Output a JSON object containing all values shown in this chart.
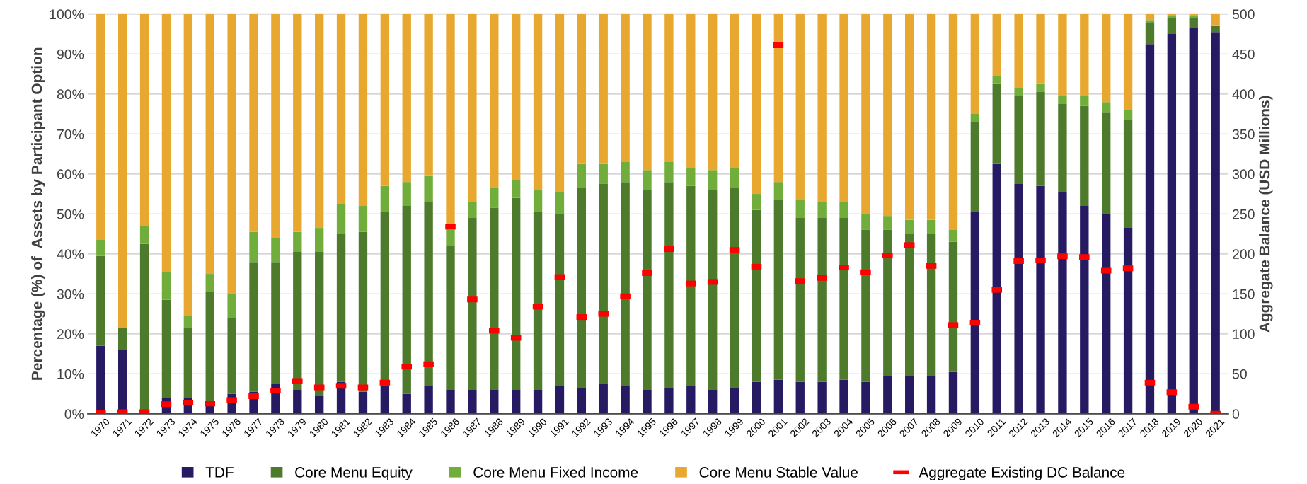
{
  "chart_data": {
    "type": "bar",
    "stacked": true,
    "categories": [
      "1970",
      "1971",
      "1972",
      "1973",
      "1974",
      "1975",
      "1976",
      "1977",
      "1978",
      "1979",
      "1980",
      "1981",
      "1982",
      "1983",
      "1984",
      "1985",
      "1986",
      "1987",
      "1988",
      "1989",
      "1990",
      "1991",
      "1992",
      "1993",
      "1994",
      "1995",
      "1996",
      "1997",
      "1998",
      "1999",
      "2000",
      "2001",
      "2002",
      "2003",
      "2004",
      "2005",
      "2006",
      "2007",
      "2008",
      "2009",
      "2010",
      "2011",
      "2012",
      "2013",
      "2014",
      "2015",
      "2016",
      "2017",
      "2018",
      "2019",
      "2020",
      "2021"
    ],
    "ylabel": "Percentage (%) of  Assets by Participant Option",
    "y2label": "Aggregate Balance (USD Millions)",
    "series": [
      {
        "name": "TDF",
        "color": "#261a63",
        "values": [
          17,
          16,
          0,
          4,
          4,
          2,
          5,
          5.5,
          7.5,
          6,
          4.5,
          8,
          5.5,
          7,
          5,
          7,
          6,
          6,
          6,
          6,
          6,
          7,
          6.5,
          7.5,
          7,
          6,
          6.5,
          7,
          6,
          6.5,
          8,
          8.5,
          8,
          8,
          8.5,
          8,
          9.5,
          9.5,
          9.5,
          10.5,
          50.5,
          62.5,
          57.5,
          57,
          55.5,
          52,
          50,
          46.5,
          92.5,
          95,
          96.5,
          95.5
        ]
      },
      {
        "name": "Core Menu Equity",
        "color": "#4e7a2c",
        "values": [
          22.5,
          5.5,
          42.5,
          24.5,
          17.5,
          28.5,
          19,
          32.5,
          30.5,
          34.5,
          36,
          37,
          40,
          43.5,
          47,
          46,
          36,
          43,
          45.5,
          48,
          44.5,
          43,
          50,
          50,
          51,
          50,
          51.5,
          50,
          50,
          50,
          43,
          45,
          41,
          41,
          40.5,
          38,
          36.5,
          35.5,
          35.5,
          32.5,
          22.5,
          20,
          22,
          23.5,
          22,
          25,
          25.5,
          27,
          5.5,
          4,
          2.5,
          1.5
        ]
      },
      {
        "name": "Core Menu Fixed Income",
        "color": "#70ad3a",
        "values": [
          4,
          0,
          4.5,
          7,
          3,
          4.5,
          6,
          7.5,
          6,
          5,
          6,
          7.5,
          6.5,
          6.5,
          6,
          6.5,
          4,
          4,
          5,
          4.5,
          5.5,
          5.5,
          6,
          5,
          5,
          5,
          5,
          4.5,
          5,
          5,
          4,
          4.5,
          4.5,
          4,
          4,
          4,
          3.5,
          3.5,
          3.5,
          3,
          2,
          2,
          2,
          2,
          2,
          2.5,
          2.5,
          2.5,
          0.5,
          0.5,
          0.5,
          0
        ]
      },
      {
        "name": "Core Menu Stable Value",
        "color": "#e8a830",
        "values": [
          56.5,
          78.5,
          53,
          64.5,
          75.5,
          65,
          70,
          54.5,
          56,
          54.5,
          53.5,
          47.5,
          48,
          43,
          42,
          40.5,
          54,
          47,
          43.5,
          41.5,
          44,
          44.5,
          37.5,
          37.5,
          37,
          39,
          37,
          38.5,
          39,
          38.5,
          45,
          42,
          46.5,
          47,
          47,
          50,
          50.5,
          51.5,
          51.5,
          54,
          25,
          15.5,
          18.5,
          17.5,
          20.5,
          20.5,
          22,
          24,
          1.5,
          0.5,
          0.5,
          3
        ]
      },
      {
        "name": "Aggregate Existing DC Balance",
        "type": "scatter",
        "axis": "y2",
        "marker": "square",
        "color": "#ff0000",
        "values": [
          1,
          2,
          2,
          12,
          14,
          13,
          17,
          22,
          29,
          41,
          33,
          35,
          33,
          39,
          59,
          62,
          234,
          143,
          104,
          95,
          134,
          171,
          121,
          125,
          147,
          176,
          206,
          163,
          165,
          205,
          184,
          461,
          166,
          170,
          183,
          177,
          198,
          211,
          185,
          111,
          114,
          155,
          191,
          192,
          197,
          196,
          179,
          182,
          39,
          27,
          9,
          0
        ]
      }
    ],
    "ylim": [
      0,
      100
    ],
    "yticks": [
      {
        "value": 0,
        "label": "0%"
      },
      {
        "value": 10,
        "label": "10%"
      },
      {
        "value": 20,
        "label": "20%"
      },
      {
        "value": 30,
        "label": "30%"
      },
      {
        "value": 40,
        "label": "40%"
      },
      {
        "value": 50,
        "label": "50%"
      },
      {
        "value": 60,
        "label": "60%"
      },
      {
        "value": 70,
        "label": "70%"
      },
      {
        "value": 80,
        "label": "80%"
      },
      {
        "value": 90,
        "label": "90%"
      },
      {
        "value": 100,
        "label": "100%"
      }
    ],
    "y2lim": [
      0,
      500
    ],
    "y2ticks": [
      0,
      50,
      100,
      150,
      200,
      250,
      300,
      350,
      400,
      450,
      500
    ],
    "grid": "y",
    "legend": "bottom"
  }
}
